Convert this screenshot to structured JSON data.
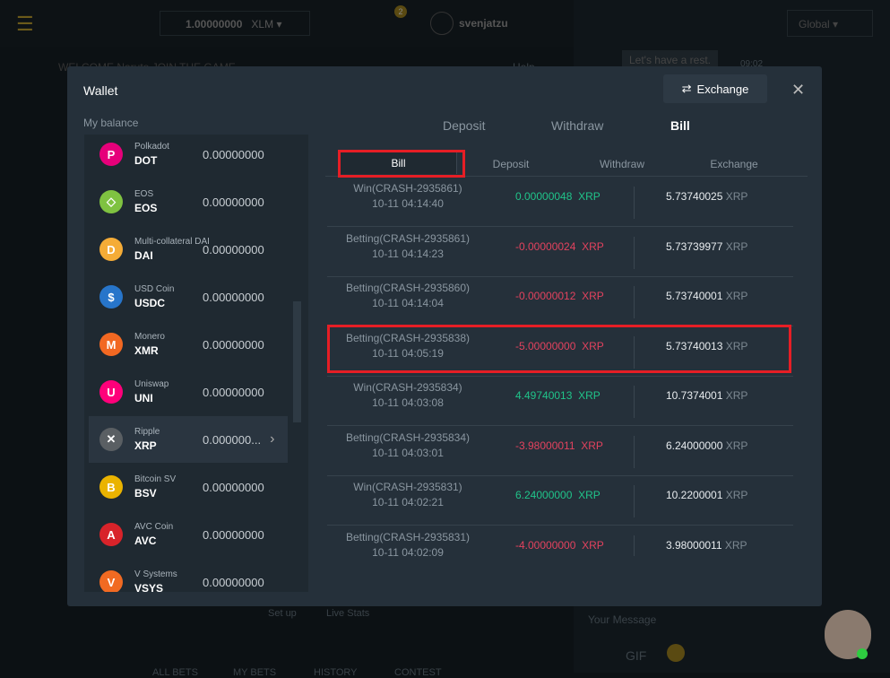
{
  "topbar": {
    "balance": "1.00000000",
    "currency": "XLM",
    "mail_badge": "2",
    "username": "svenjatzu",
    "region": "Global",
    "welcome": "WELCOME Naruto JOIN THE GAME",
    "help": "Help"
  },
  "chat": {
    "message": "Let's have a rest.",
    "time": "09:02",
    "input_placeholder": "Your Message",
    "gif": "GIF"
  },
  "background": {
    "setup": "Set up",
    "live_stats": "Live Stats",
    "bottom_tabs": [
      "ALL BETS",
      "MY BETS",
      "HISTORY",
      "CONTEST"
    ]
  },
  "wallet": {
    "title": "Wallet",
    "exchange_button": "Exchange",
    "my_balance": "My balance",
    "tabs": [
      "Deposit",
      "Withdraw",
      "Bill"
    ],
    "active_tab": "Bill",
    "sub_tabs": [
      "Bill",
      "Deposit",
      "Withdraw",
      "Exchange"
    ],
    "active_sub_tab": "Bill",
    "coins": [
      {
        "full": "Polkadot",
        "sym": "DOT",
        "bal": "0.00000000",
        "color": "#e6007a",
        "glyph": "P"
      },
      {
        "full": "EOS",
        "sym": "EOS",
        "bal": "0.00000000",
        "color": "#7fc241",
        "glyph": "◇"
      },
      {
        "full": "Multi-collateral DAI",
        "sym": "DAI",
        "bal": "0.00000000",
        "color": "#f5ac37",
        "glyph": "D"
      },
      {
        "full": "USD Coin",
        "sym": "USDC",
        "bal": "0.00000000",
        "color": "#2775ca",
        "glyph": "$"
      },
      {
        "full": "Monero",
        "sym": "XMR",
        "bal": "0.00000000",
        "color": "#f26822",
        "glyph": "M"
      },
      {
        "full": "Uniswap",
        "sym": "UNI",
        "bal": "0.00000000",
        "color": "#ff007a",
        "glyph": "U"
      },
      {
        "full": "Ripple",
        "sym": "XRP",
        "bal": "0.000000...",
        "color": "#5a5f63",
        "glyph": "✕"
      },
      {
        "full": "Bitcoin SV",
        "sym": "BSV",
        "bal": "0.00000000",
        "color": "#eab300",
        "glyph": "B"
      },
      {
        "full": "AVC Coin",
        "sym": "AVC",
        "bal": "0.00000000",
        "color": "#d8232a",
        "glyph": "A"
      },
      {
        "full": "V Systems",
        "sym": "VSYS",
        "bal": "0.00000000",
        "color": "#f16a22",
        "glyph": "V"
      }
    ],
    "selected_coin": "XRP",
    "bills": [
      {
        "desc": "Win(CRASH-2935861)",
        "time": "10-11 04:14:40",
        "amount": "0.00000048",
        "type": "win",
        "balance": "5.73740025",
        "unit": "XRP"
      },
      {
        "desc": "Betting(CRASH-2935861)",
        "time": "10-11 04:14:23",
        "amount": "-0.00000024",
        "type": "bet",
        "balance": "5.73739977",
        "unit": "XRP"
      },
      {
        "desc": "Betting(CRASH-2935860)",
        "time": "10-11 04:14:04",
        "amount": "-0.00000012",
        "type": "bet",
        "balance": "5.73740001",
        "unit": "XRP"
      },
      {
        "desc": "Betting(CRASH-2935838)",
        "time": "10-11 04:05:19",
        "amount": "-5.00000000",
        "type": "bet",
        "balance": "5.73740013",
        "unit": "XRP"
      },
      {
        "desc": "Win(CRASH-2935834)",
        "time": "10-11 04:03:08",
        "amount": "4.49740013",
        "type": "win",
        "balance": "10.7374001",
        "unit": "XRP"
      },
      {
        "desc": "Betting(CRASH-2935834)",
        "time": "10-11 04:03:01",
        "amount": "-3.98000011",
        "type": "bet",
        "balance": "6.24000000",
        "unit": "XRP"
      },
      {
        "desc": "Win(CRASH-2935831)",
        "time": "10-11 04:02:21",
        "amount": "6.24000000",
        "type": "win",
        "balance": "10.2200001",
        "unit": "XRP"
      },
      {
        "desc": "Betting(CRASH-2935831)",
        "time": "10-11 04:02:09",
        "amount": "-4.00000000",
        "type": "bet",
        "balance": "3.98000011",
        "unit": "XRP"
      }
    ]
  }
}
